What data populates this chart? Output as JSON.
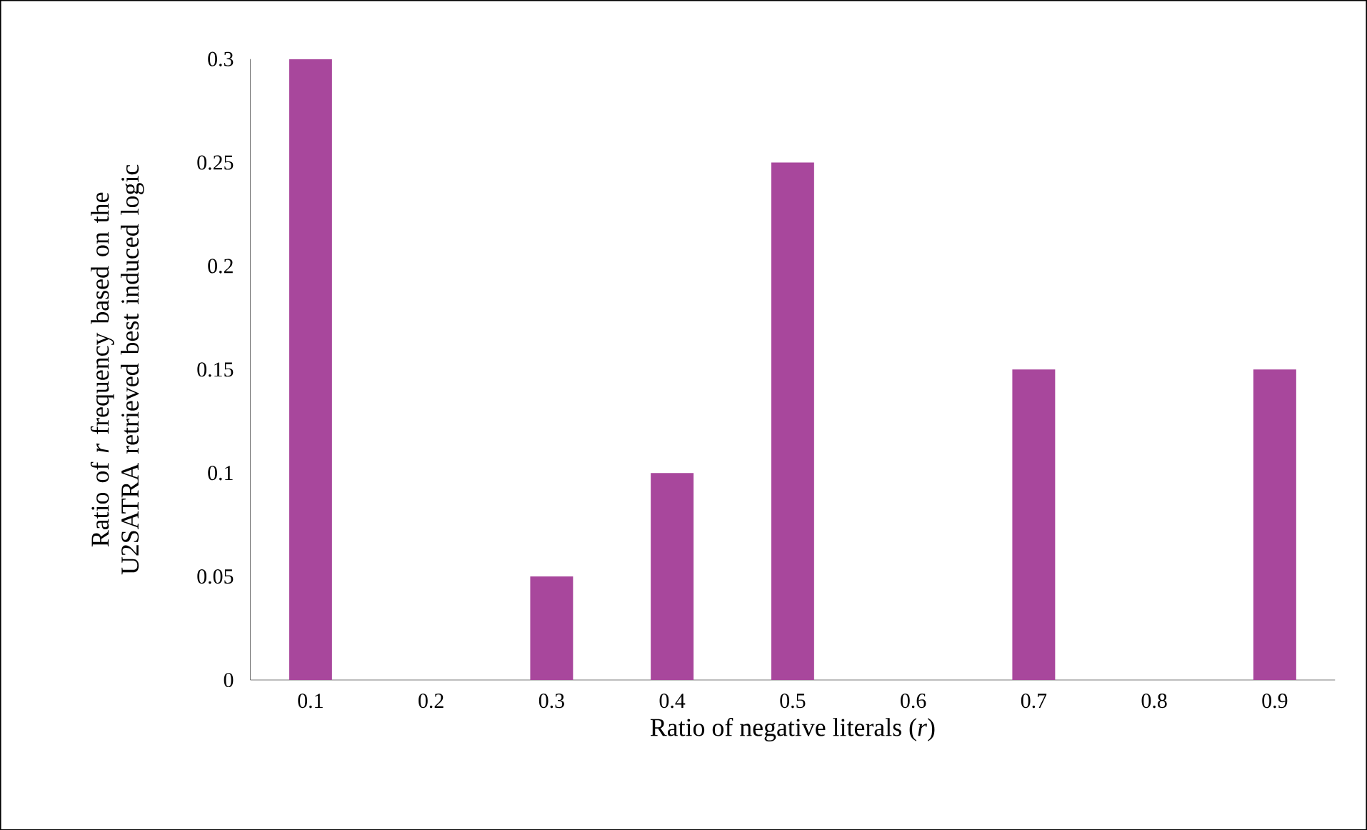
{
  "chart_data": {
    "type": "bar",
    "xlabel": "Ratio of negative literals (*r*)",
    "ylabel": "Ratio of *r* frequency based on the U2SATRA retrieved best induced logic",
    "categories": [
      "0.1",
      "0.2",
      "0.3",
      "0.4",
      "0.5",
      "0.6",
      "0.7",
      "0.8",
      "0.9"
    ],
    "values": [
      0.3,
      0,
      0.05,
      0.1,
      0.25,
      0,
      0.15,
      0,
      0.15
    ],
    "color": "#a8479c",
    "ylim": [
      0,
      0.3
    ],
    "yticks": [
      0,
      0.05,
      0.1,
      0.15,
      0.2,
      0.25,
      0.3
    ],
    "grid": false
  }
}
